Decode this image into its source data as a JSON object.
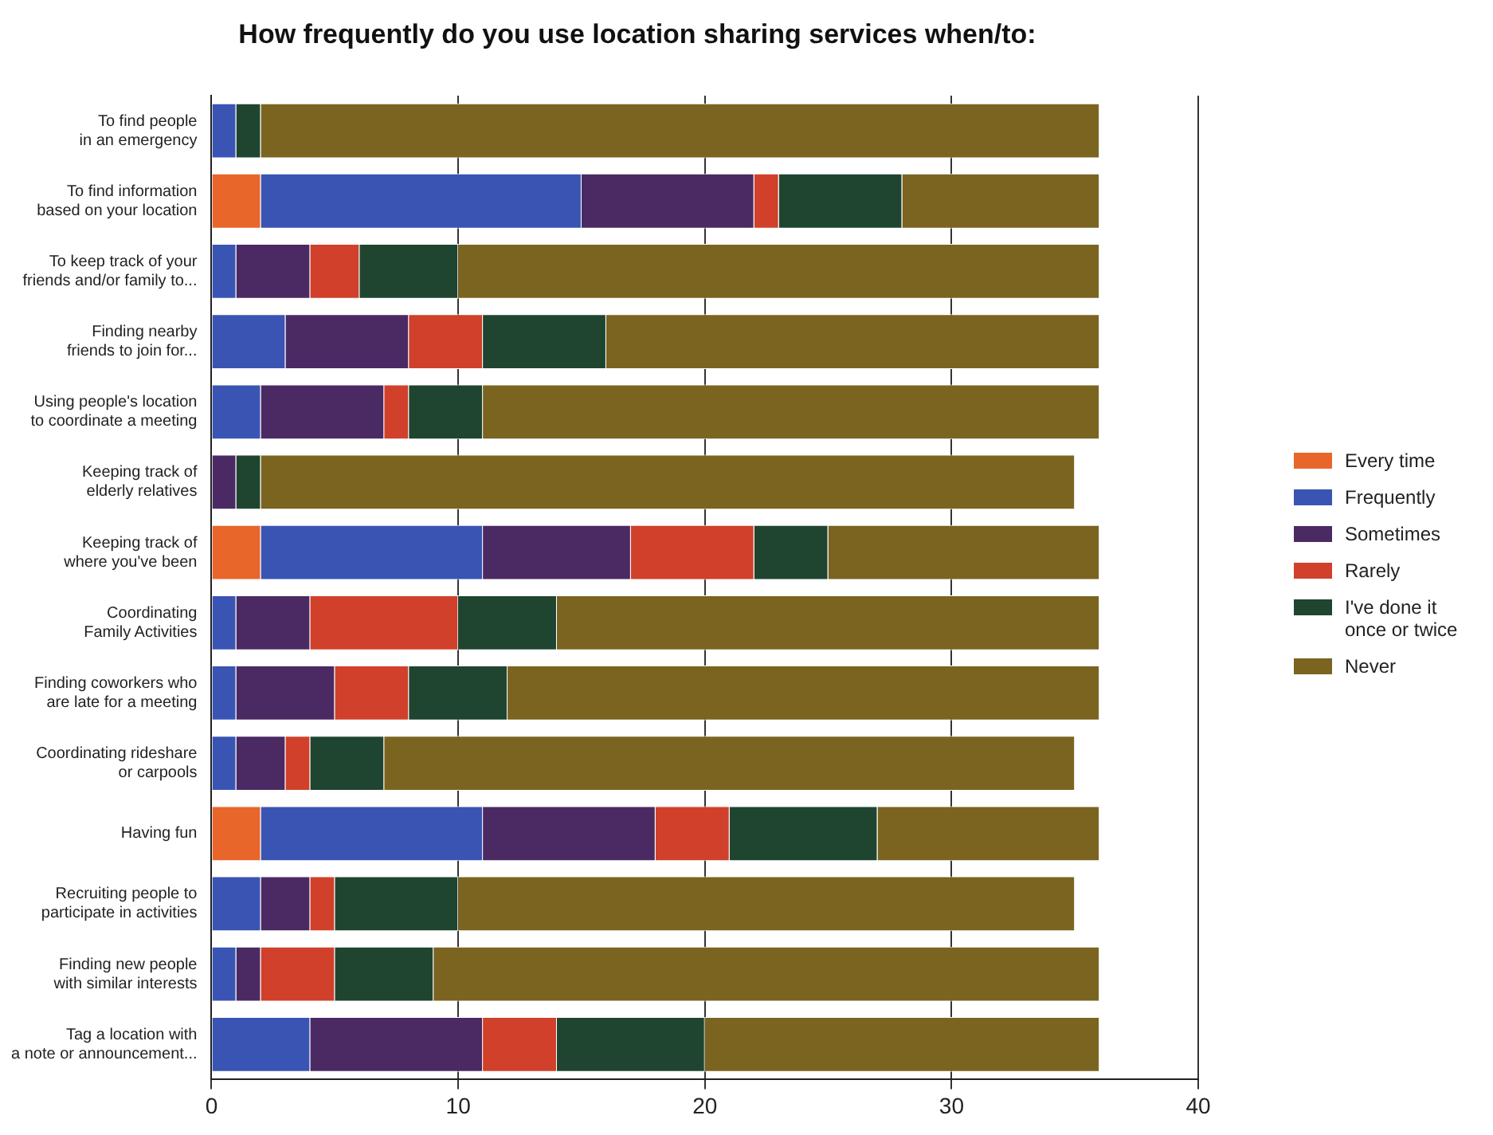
{
  "chart_data": {
    "type": "bar",
    "orientation": "horizontal",
    "stacked": true,
    "title": "How frequently do you use location sharing services when/to:",
    "categories": [
      "To find people\nin an emergency",
      "To find information\nbased on your location",
      "To keep track of your\nfriends and/or family to...",
      "Finding nearby\nfriends to join for...",
      "Using people's location\nto coordinate a meeting",
      "Keeping track of\nelderly relatives",
      "Keeping track of\nwhere you've been",
      "Coordinating\nFamily Activities",
      "Finding coworkers who\nare late for a meeting",
      "Coordinating rideshare\nor carpools",
      "Having fun",
      "Recruiting people to\nparticipate in activities",
      "Finding new people\nwith similar interests",
      "Tag a location with\na note or announcement..."
    ],
    "series": [
      {
        "name": "Every time",
        "color": "#e8662a",
        "values": [
          0,
          2,
          0,
          0,
          0,
          0,
          2,
          0,
          0,
          0,
          2,
          0,
          0,
          0
        ]
      },
      {
        "name": "Frequently",
        "color": "#3a54b4",
        "values": [
          1,
          13,
          1,
          3,
          2,
          0,
          9,
          1,
          1,
          1,
          9,
          2,
          1,
          4
        ]
      },
      {
        "name": "Sometimes",
        "color": "#4b2a64",
        "values": [
          0,
          7,
          3,
          5,
          5,
          1,
          6,
          3,
          4,
          2,
          7,
          2,
          1,
          7
        ]
      },
      {
        "name": "Rarely",
        "color": "#d0402a",
        "values": [
          0,
          1,
          2,
          3,
          1,
          0,
          5,
          6,
          3,
          1,
          3,
          1,
          3,
          3
        ]
      },
      {
        "name": "I've done it\nonce or twice",
        "color": "#1f4530",
        "values": [
          1,
          5,
          4,
          5,
          3,
          1,
          3,
          4,
          4,
          3,
          6,
          5,
          4,
          6
        ]
      },
      {
        "name": "Never",
        "color": "#7a6420",
        "values": [
          34,
          8,
          26,
          20,
          25,
          33,
          11,
          22,
          24,
          28,
          9,
          25,
          27,
          16
        ]
      }
    ],
    "xlim": [
      0,
      40
    ],
    "xticks": [
      0,
      10,
      20,
      30,
      40
    ],
    "grid": "x",
    "legend": "right"
  }
}
